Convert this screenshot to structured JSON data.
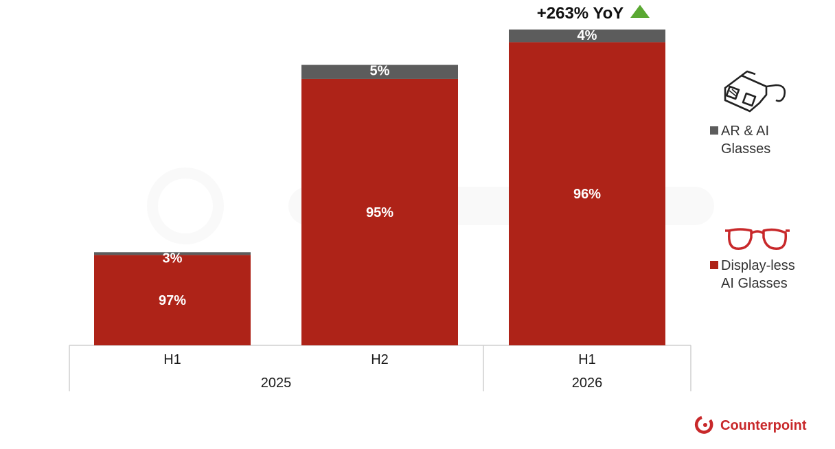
{
  "colors": {
    "display_less": "#ae2318",
    "ar_ai": "#5c5c5c",
    "grid": "#cfcfcf",
    "yoy_arrow": "#5aa832",
    "brand": "#c8282a"
  },
  "annotation": {
    "yoy": "+263% YoY"
  },
  "legend": [
    {
      "icon": "3d-glasses-icon",
      "label_lines": [
        "AR & AI",
        "Glasses"
      ]
    },
    {
      "icon": "eyeglasses-icon",
      "label_lines": [
        "Display-less",
        "AI Glasses"
      ]
    }
  ],
  "brand": {
    "name": "Counterpoint"
  },
  "chart_data": {
    "type": "bar",
    "stacked": true,
    "categories": [
      "H1",
      "H2",
      "H1"
    ],
    "groups": [
      {
        "label": "2025",
        "span": [
          0,
          1
        ]
      },
      {
        "label": "2026",
        "span": [
          2,
          2
        ]
      }
    ],
    "relative_totals": [
      0.295,
      0.888,
      1.0
    ],
    "series": [
      {
        "name": "Display-less AI Glasses",
        "values": [
          97,
          95,
          96
        ],
        "labels": [
          "97%",
          "95%",
          "96%"
        ]
      },
      {
        "name": "AR & AI Glasses",
        "values": [
          3,
          5,
          4
        ],
        "labels": [
          "3%",
          "5%",
          "4%"
        ]
      }
    ],
    "title": "",
    "xlabel": "",
    "ylabel": ""
  }
}
